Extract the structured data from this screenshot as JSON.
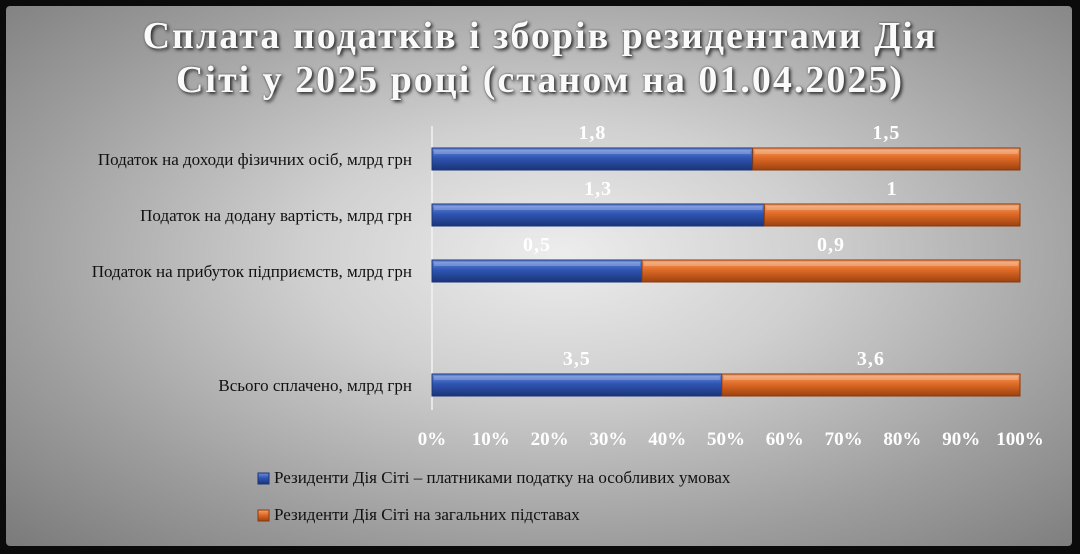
{
  "title_line1": "Сплата податків і зборів резидентами Дія",
  "title_line2": "Сіті у 2025 році (станом на 01.04.2025)",
  "chart_data": {
    "type": "bar",
    "orientation": "horizontal",
    "stacked": "100%",
    "categories": [
      "Податок на доходи фізичних осіб, млрд грн",
      "Податок на додану вартість, млрд грн",
      "Податок на прибуток підприємств, млрд грн",
      "Всього сплачено, млрд грн"
    ],
    "series": [
      {
        "name": "Резиденти Дія Сіті – платниками податку на особливих умовах",
        "values": [
          1.8,
          1.3,
          0.5,
          3.5
        ],
        "labels": [
          "1,8",
          "1,3",
          "0,5",
          "3,5"
        ],
        "color": "#2f55b3"
      },
      {
        "name": "Резиденти Дія Сіті на загальних підставах",
        "values": [
          1.5,
          1,
          0.9,
          3.6
        ],
        "labels": [
          "1,5",
          "1",
          "0,9",
          "3,6"
        ],
        "color": "#e06a26"
      }
    ],
    "xticks": [
      "0%",
      "10%",
      "20%",
      "30%",
      "40%",
      "50%",
      "60%",
      "70%",
      "80%",
      "90%",
      "100%"
    ],
    "xlim": [
      0,
      100
    ],
    "legend_position": "bottom",
    "grid": false
  }
}
